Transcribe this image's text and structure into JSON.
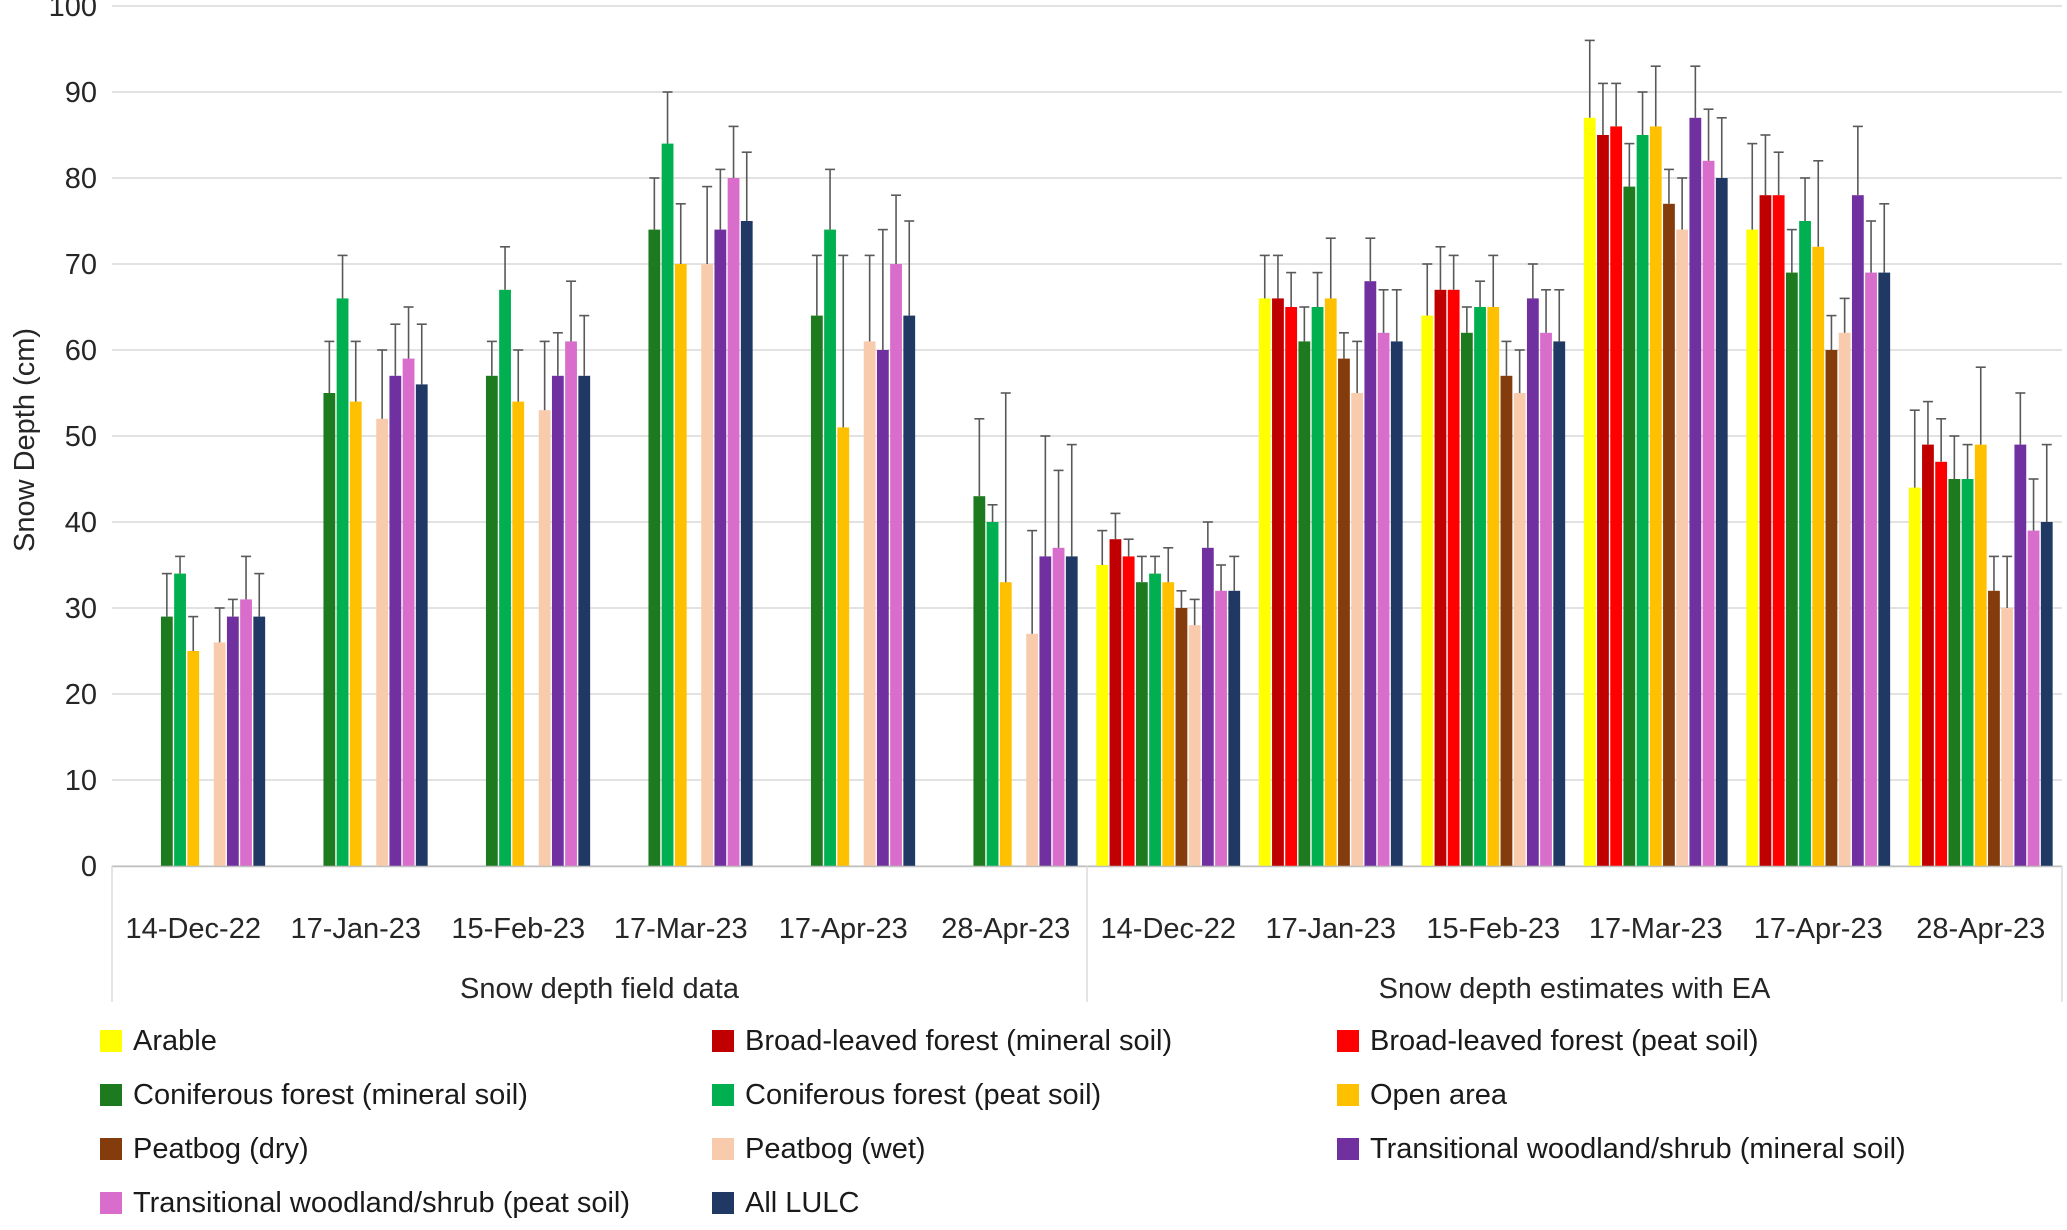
{
  "chart_data": {
    "type": "bar",
    "title": "",
    "ylabel": "Snow Depth (cm)",
    "ylim": [
      0,
      100
    ],
    "ytick_step": 10,
    "grid": true,
    "legend_position": "bottom",
    "error_bars": "plus-direction",
    "sections": [
      {
        "label": "Snow depth field data",
        "categories": [
          "14-Dec-22",
          "17-Jan-23",
          "15-Feb-23",
          "17-Mar-23",
          "17-Apr-23",
          "28-Apr-23"
        ]
      },
      {
        "label": "Snow depth estimates with EA",
        "categories": [
          "14-Dec-22",
          "17-Jan-23",
          "15-Feb-23",
          "17-Mar-23",
          "17-Apr-23",
          "28-Apr-23"
        ]
      }
    ],
    "categories": [
      "14-Dec-22",
      "17-Jan-23",
      "15-Feb-23",
      "17-Mar-23",
      "17-Apr-23",
      "28-Apr-23",
      "14-Dec-22",
      "17-Jan-23",
      "15-Feb-23",
      "17-Mar-23",
      "17-Apr-23",
      "28-Apr-23"
    ],
    "series": [
      {
        "name": "Arable",
        "color": "#FFFF00",
        "values": [
          null,
          null,
          null,
          null,
          null,
          null,
          35,
          66,
          64,
          87,
          74,
          44
        ],
        "error_top": [
          null,
          null,
          null,
          null,
          null,
          null,
          39,
          71,
          70,
          96,
          84,
          53
        ]
      },
      {
        "name": "Broad-leaved forest (mineral soil)",
        "color": "#C00000",
        "values": [
          null,
          null,
          null,
          null,
          null,
          null,
          38,
          66,
          67,
          85,
          78,
          49
        ],
        "error_top": [
          null,
          null,
          null,
          null,
          null,
          null,
          41,
          71,
          72,
          91,
          85,
          54
        ]
      },
      {
        "name": "Broad-leaved forest (peat soil)",
        "color": "#FF0000",
        "values": [
          null,
          null,
          null,
          null,
          null,
          null,
          36,
          65,
          67,
          86,
          78,
          47
        ],
        "error_top": [
          null,
          null,
          null,
          null,
          null,
          null,
          38,
          69,
          71,
          91,
          83,
          52
        ]
      },
      {
        "name": "Coniferous forest (mineral soil)",
        "color": "#1E7A1E",
        "values": [
          29,
          55,
          57,
          74,
          64,
          43,
          33,
          61,
          62,
          79,
          69,
          45
        ],
        "error_top": [
          34,
          61,
          61,
          80,
          71,
          52,
          36,
          65,
          65,
          84,
          74,
          50
        ]
      },
      {
        "name": "Coniferous forest (peat soil)",
        "color": "#00B050",
        "values": [
          34,
          66,
          67,
          84,
          74,
          40,
          34,
          65,
          65,
          85,
          75,
          45
        ],
        "error_top": [
          36,
          71,
          72,
          90,
          81,
          42,
          36,
          69,
          68,
          90,
          80,
          49
        ]
      },
      {
        "name": "Open area",
        "color": "#FFC000",
        "values": [
          25,
          54,
          54,
          70,
          51,
          33,
          33,
          66,
          65,
          86,
          72,
          49
        ],
        "error_top": [
          29,
          61,
          60,
          77,
          71,
          55,
          37,
          73,
          71,
          93,
          82,
          58
        ]
      },
      {
        "name": "Peatbog (dry)",
        "color": "#843C0C",
        "values": [
          null,
          null,
          null,
          null,
          null,
          null,
          30,
          59,
          57,
          77,
          60,
          32
        ],
        "error_top": [
          null,
          null,
          null,
          null,
          null,
          null,
          32,
          62,
          61,
          81,
          64,
          36
        ]
      },
      {
        "name": "Peatbog (wet)",
        "color": "#F8CBAD",
        "values": [
          26,
          52,
          53,
          70,
          61,
          27,
          28,
          55,
          55,
          74,
          62,
          30
        ],
        "error_top": [
          30,
          60,
          61,
          79,
          71,
          39,
          31,
          61,
          60,
          80,
          66,
          36
        ]
      },
      {
        "name": "Transitional woodland/shrub (mineral soil)",
        "color": "#7030A0",
        "values": [
          29,
          57,
          57,
          74,
          60,
          36,
          37,
          68,
          66,
          87,
          78,
          49
        ],
        "error_top": [
          31,
          63,
          62,
          81,
          74,
          50,
          40,
          73,
          70,
          93,
          86,
          55
        ]
      },
      {
        "name": "Transitional woodland/shrub (peat soil)",
        "color": "#D86DCB",
        "values": [
          31,
          59,
          61,
          80,
          70,
          37,
          32,
          62,
          62,
          82,
          69,
          39
        ],
        "error_top": [
          36,
          65,
          68,
          86,
          78,
          46,
          35,
          67,
          67,
          88,
          75,
          45
        ]
      },
      {
        "name": "All LULC",
        "color": "#1F3864",
        "values": [
          29,
          56,
          57,
          75,
          64,
          36,
          32,
          61,
          61,
          80,
          69,
          40
        ],
        "error_top": [
          34,
          63,
          64,
          83,
          75,
          49,
          36,
          67,
          67,
          87,
          77,
          49
        ]
      }
    ]
  },
  "legend": {
    "items": [
      {
        "label": "Arable",
        "color": "#FFFF00"
      },
      {
        "label": "Broad-leaved forest (mineral soil)",
        "color": "#C00000"
      },
      {
        "label": "Broad-leaved forest (peat soil)",
        "color": "#FF0000"
      },
      {
        "label": "Coniferous forest (mineral soil)",
        "color": "#1E7A1E"
      },
      {
        "label": "Coniferous forest (peat soil)",
        "color": "#00B050"
      },
      {
        "label": "Open area",
        "color": "#FFC000"
      },
      {
        "label": "Peatbog (dry)",
        "color": "#843C0C"
      },
      {
        "label": "Peatbog (wet)",
        "color": "#F8CBAD"
      },
      {
        "label": "Transitional woodland/shrub (mineral soil)",
        "color": "#7030A0"
      },
      {
        "label": "Transitional woodland/shrub (peat soil)",
        "color": "#D86DCB"
      },
      {
        "label": "All LULC",
        "color": "#1F3864"
      }
    ]
  },
  "style": {
    "gridline_color": "#D9D9D9",
    "axis_line_color": "#BFBFBF",
    "error_bar_color": "#595959",
    "text_color": "#262626"
  }
}
